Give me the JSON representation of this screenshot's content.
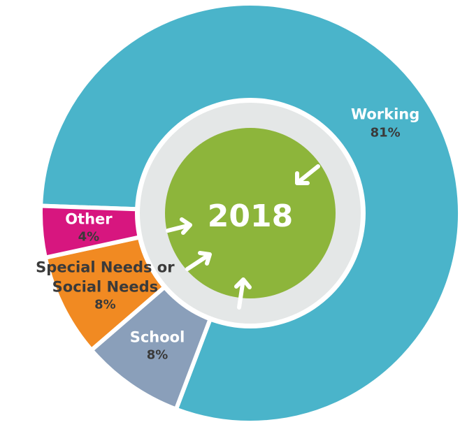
{
  "chart_data": {
    "type": "pie",
    "title": "2018",
    "categories": [
      "Working",
      "School",
      "Special Needs or Social Needs",
      "Other"
    ],
    "values": [
      81,
      8,
      8,
      4
    ],
    "value_labels": [
      "81%",
      "8%",
      "8%",
      "4%"
    ],
    "colors": [
      "#4ab4ca",
      "#8a9fba",
      "#f18a22",
      "#d7167f"
    ]
  }
}
